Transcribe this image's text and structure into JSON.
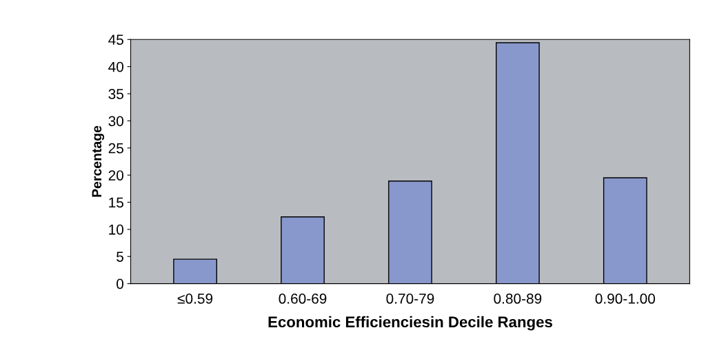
{
  "chart_data": {
    "type": "bar",
    "xlabel": "Economic Efficienciesin Decile Ranges",
    "ylabel": "Percentage",
    "categories": [
      "≤0.59",
      "0.60-69",
      "0.70-79",
      "0.80-89",
      "0.90-1.00"
    ],
    "values": [
      4.5,
      12.3,
      18.9,
      44.4,
      19.5
    ],
    "color": "#8898cc",
    "ylim": [
      0,
      45
    ],
    "yticks": [
      0,
      5,
      10,
      15,
      20,
      25,
      30,
      35,
      40,
      45
    ],
    "grid": false
  }
}
